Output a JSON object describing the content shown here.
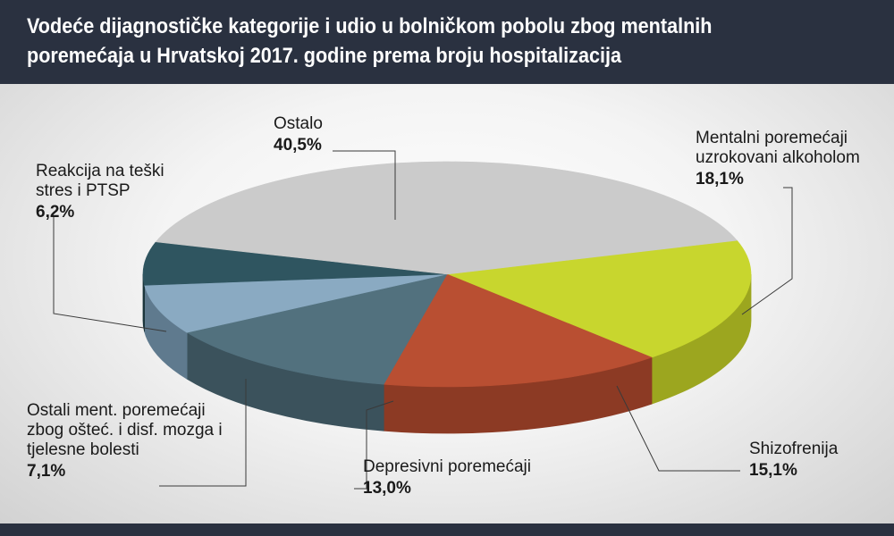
{
  "title": "Vodeće dijagnostičke kategorije i udio u bolničkom pobolu zbog mentalnih poremećaja u Hrvatskoj 2017. godine prema broju hospitalizacija",
  "chart_data": {
    "type": "pie",
    "title": "Vodeće dijagnostičke kategorije i udio u bolničkom pobolu zbog mentalnih poremećaja u Hrvatskoj 2017. godine prema broju hospitalizacija",
    "slices": [
      {
        "label": "Mentalni poremećaji uzrokovani alkoholom",
        "label_lines": [
          "Mentalni poremećaji",
          "uzrokovani alkoholom"
        ],
        "value": 18.1,
        "value_text": "18,1%",
        "color": "#c8d62e",
        "side_color": "#9ca61f"
      },
      {
        "label": "Shizofrenija",
        "label_lines": [
          "Shizofrenija"
        ],
        "value": 15.1,
        "value_text": "15,1%",
        "color": "#b94f32",
        "side_color": "#8c3a24"
      },
      {
        "label": "Depresivni poremećaji",
        "label_lines": [
          "Depresivni poremećaji"
        ],
        "value": 13.0,
        "value_text": "13,0%",
        "color": "#52717e",
        "side_color": "#3b525c"
      },
      {
        "label": "Ostali ment. poremećaji zbog ošteć. i disf. mozga i tjelesne bolesti",
        "label_lines": [
          "Ostali ment. poremećaji",
          "zbog ošteć. i disf. mozga i",
          "tjelesne bolesti"
        ],
        "value": 7.1,
        "value_text": "7,1%",
        "color": "#8aaac2",
        "side_color": "#5f7a8e"
      },
      {
        "label": "Reakcija na teški stres i PTSP",
        "label_lines": [
          "Reakcija na teški",
          "stres i PTSP"
        ],
        "value": 6.2,
        "value_text": "6,2%",
        "color": "#2f5560",
        "side_color": "#1c363d"
      },
      {
        "label": "Ostalo",
        "label_lines": [
          "Ostalo"
        ],
        "value": 40.5,
        "value_text": "40,5%",
        "color": "#cbcbcb",
        "side_color": "#a9a9a9"
      }
    ]
  }
}
